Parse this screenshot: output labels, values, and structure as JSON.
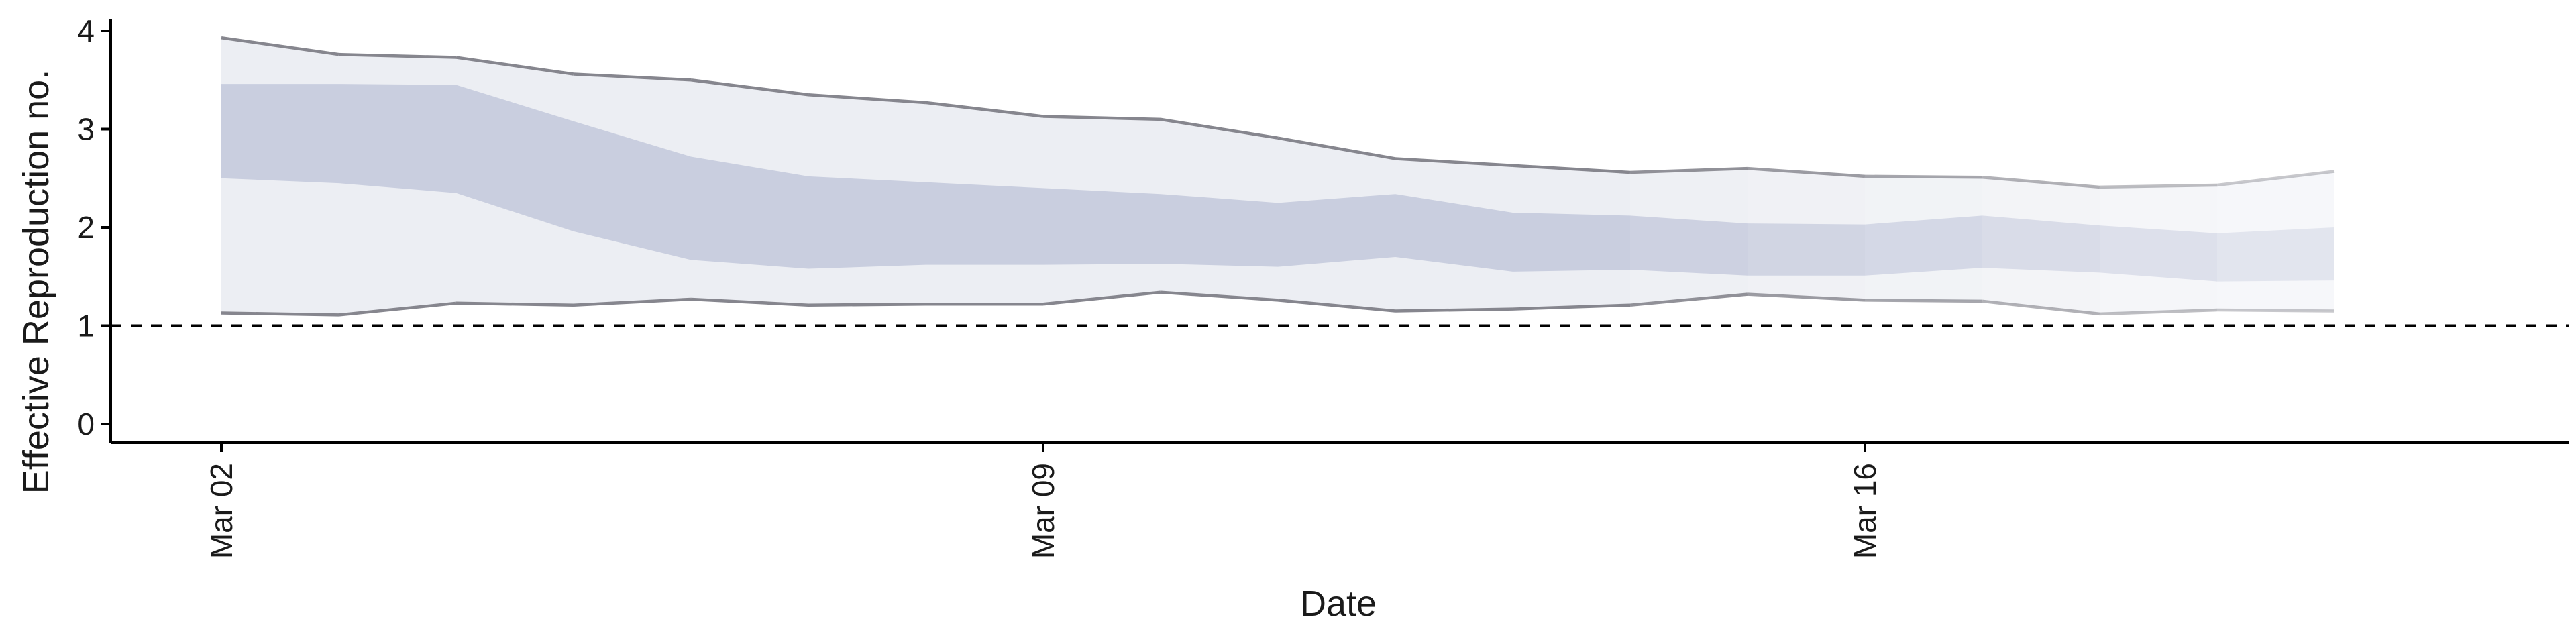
{
  "chart_data": {
    "type": "area",
    "xlabel": "Date",
    "ylabel": "Effective Reproduction no.",
    "x": [
      "Mar 02",
      "Mar 03",
      "Mar 04",
      "Mar 05",
      "Mar 06",
      "Mar 07",
      "Mar 08",
      "Mar 09",
      "Mar 10",
      "Mar 11",
      "Mar 12",
      "Mar 13",
      "Mar 14",
      "Mar 15",
      "Mar 16",
      "Mar 17",
      "Mar 18",
      "Mar 19",
      "Mar 20"
    ],
    "x_ticks": [
      "Mar 02",
      "Mar 09",
      "Mar 16"
    ],
    "y_ticks": [
      0,
      1,
      2,
      3,
      4
    ],
    "ylim": [
      -0.1,
      4.1
    ],
    "reference_line": {
      "y": 1,
      "style": "dashed"
    },
    "outer_interval": {
      "upper": [
        3.93,
        3.76,
        3.73,
        3.56,
        3.5,
        3.35,
        3.27,
        3.13,
        3.1,
        2.91,
        2.7,
        2.63,
        2.56,
        2.6,
        2.52,
        2.51,
        2.41,
        2.43,
        2.57
      ],
      "lower": [
        1.13,
        1.11,
        1.23,
        1.21,
        1.27,
        1.21,
        1.22,
        1.22,
        1.34,
        1.26,
        1.15,
        1.17,
        1.21,
        1.32,
        1.26,
        1.25,
        1.12,
        1.16,
        1.15
      ]
    },
    "inner_interval": {
      "upper": [
        3.46,
        3.46,
        3.45,
        3.08,
        2.72,
        2.52,
        2.46,
        2.4,
        2.34,
        2.25,
        2.34,
        2.15,
        2.12,
        2.04,
        2.03,
        2.12,
        2.02,
        1.94,
        2.0
      ],
      "lower": [
        2.5,
        2.45,
        2.35,
        1.96,
        1.67,
        1.58,
        1.62,
        1.62,
        1.63,
        1.6,
        1.7,
        1.55,
        1.57,
        1.51,
        1.51,
        1.59,
        1.54,
        1.45,
        1.46
      ]
    },
    "colors": {
      "outer_fill": "#eceef3",
      "inner_fill": "#c9cedf",
      "edge_line": "#86868e",
      "axis": "#000000",
      "reference": "#000000"
    }
  }
}
